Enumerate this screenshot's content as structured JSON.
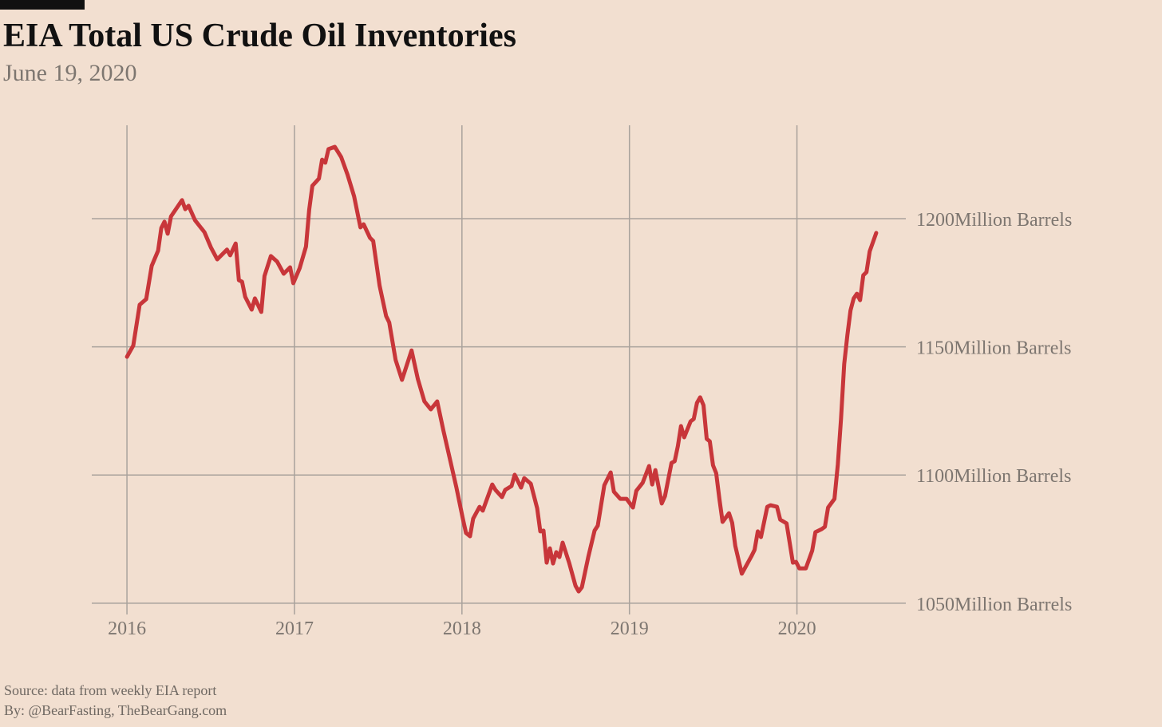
{
  "chart_data": {
    "type": "line",
    "title": "EIA Total US Crude Oil Inventories",
    "subtitle": "June 19, 2020",
    "source": "Source: data from  weekly EIA report",
    "credit": "By: @BearFasting, TheBearGang.com",
    "xlim": [
      2015.79,
      2020.65
    ],
    "xticks": [
      2016,
      2017,
      2018,
      2019,
      2020
    ],
    "ylim": [
      1045.6,
      1236.4
    ],
    "yticks": [
      {
        "value": 1050,
        "label": "1050Million Barrels"
      },
      {
        "value": 1100,
        "label": "1100Million Barrels"
      },
      {
        "value": 1150,
        "label": "1150Million Barrels"
      },
      {
        "value": 1200,
        "label": "1200Million Barrels"
      }
    ],
    "grid": true,
    "x": [
      2016.0,
      2016.038,
      2016.076,
      2016.115,
      2016.148,
      2016.186,
      2016.205,
      2016.224,
      2016.243,
      2016.263,
      2016.329,
      2016.348,
      2016.368,
      2016.406,
      2016.463,
      2016.501,
      2016.539,
      2016.597,
      2016.616,
      2016.649,
      2016.668,
      2016.687,
      2016.706,
      2016.745,
      2016.764,
      2016.802,
      2016.821,
      2016.859,
      2016.897,
      2016.936,
      2016.974,
      2016.993,
      2017.031,
      2017.069,
      2017.088,
      2017.107,
      2017.146,
      2017.165,
      2017.184,
      2017.203,
      2017.241,
      2017.279,
      2017.317,
      2017.356,
      2017.394,
      2017.413,
      2017.451,
      2017.47,
      2017.508,
      2017.547,
      2017.566,
      2017.604,
      2017.642,
      2017.699,
      2017.737,
      2017.776,
      2017.814,
      2017.852,
      2017.89,
      2017.928,
      2017.967,
      2018.005,
      2018.024,
      2018.048,
      2018.067,
      2018.105,
      2018.124,
      2018.181,
      2018.2,
      2018.239,
      2018.258,
      2018.296,
      2018.315,
      2018.353,
      2018.372,
      2018.411,
      2018.449,
      2018.468,
      2018.487,
      2018.506,
      2018.525,
      2018.544,
      2018.563,
      2018.582,
      2018.601,
      2018.64,
      2018.678,
      2018.697,
      2018.716,
      2018.754,
      2018.792,
      2018.811,
      2018.85,
      2018.888,
      2018.907,
      2018.945,
      2018.983,
      2019.021,
      2019.041,
      2019.079,
      2019.117,
      2019.136,
      2019.155,
      2019.193,
      2019.212,
      2019.251,
      2019.27,
      2019.289,
      2019.308,
      2019.327,
      2019.365,
      2019.384,
      2019.403,
      2019.422,
      2019.442,
      2019.461,
      2019.48,
      2019.499,
      2019.518,
      2019.537,
      2019.556,
      2019.594,
      2019.613,
      2019.632,
      2019.671,
      2019.728,
      2019.747,
      2019.766,
      2019.785,
      2019.823,
      2019.842,
      2019.881,
      2019.9,
      2019.938,
      2019.976,
      2019.995,
      2020.014,
      2020.053,
      2020.091,
      2020.11,
      2020.148,
      2020.167,
      2020.186,
      2020.224,
      2020.244,
      2020.263,
      2020.282,
      2020.301,
      2020.32,
      2020.339,
      2020.358,
      2020.377,
      2020.396,
      2020.415,
      2020.434,
      2020.473
    ],
    "series": [
      {
        "name": "Total US Crude Oil Inventories",
        "color": "#c8363a",
        "values": [
          1146.1,
          1150.5,
          1166.4,
          1168.6,
          1181.6,
          1187.5,
          1196.3,
          1198.8,
          1194.1,
          1200.9,
          1207.2,
          1203.7,
          1205.0,
          1199.4,
          1194.7,
          1188.8,
          1184.1,
          1187.9,
          1185.7,
          1190.3,
          1176.0,
          1175.4,
          1169.5,
          1164.5,
          1168.9,
          1163.6,
          1177.6,
          1185.4,
          1183.2,
          1178.5,
          1181.0,
          1174.8,
          1180.7,
          1189.1,
          1203.4,
          1212.8,
          1215.6,
          1223.0,
          1221.8,
          1227.1,
          1228.0,
          1224.0,
          1217.1,
          1208.7,
          1196.6,
          1197.8,
          1192.5,
          1191.3,
          1173.9,
          1162.0,
          1159.5,
          1144.9,
          1137.1,
          1148.6,
          1137.4,
          1128.7,
          1125.6,
          1128.7,
          1117.2,
          1106.3,
          1095.1,
          1083.0,
          1077.4,
          1076.1,
          1083.0,
          1087.6,
          1086.1,
          1096.3,
          1094.2,
          1091.4,
          1094.2,
          1095.7,
          1100.1,
          1095.1,
          1098.8,
          1096.6,
          1087.0,
          1078.0,
          1078.3,
          1065.8,
          1071.4,
          1065.5,
          1069.9,
          1068.0,
          1073.6,
          1065.8,
          1056.8,
          1054.6,
          1056.2,
          1068.0,
          1078.3,
          1080.2,
          1096.0,
          1101.0,
          1093.5,
          1090.7,
          1090.7,
          1087.3,
          1093.8,
          1097.0,
          1103.5,
          1096.3,
          1101.9,
          1088.9,
          1091.7,
          1104.7,
          1105.4,
          1111.3,
          1119.1,
          1114.7,
          1120.9,
          1121.9,
          1128.1,
          1130.3,
          1127.2,
          1114.1,
          1113.1,
          1103.8,
          1100.7,
          1090.7,
          1081.7,
          1085.1,
          1081.4,
          1072.4,
          1061.5,
          1068.3,
          1070.8,
          1078.0,
          1075.8,
          1087.6,
          1088.2,
          1087.6,
          1082.6,
          1081.1,
          1065.8,
          1066.1,
          1063.6,
          1063.6,
          1070.5,
          1077.7,
          1078.9,
          1079.8,
          1087.3,
          1090.7,
          1104.1,
          1121.9,
          1143.3,
          1154.6,
          1164.2,
          1168.9,
          1170.7,
          1168.2,
          1177.9,
          1179.1,
          1187.2,
          1194.4
        ]
      }
    ]
  }
}
